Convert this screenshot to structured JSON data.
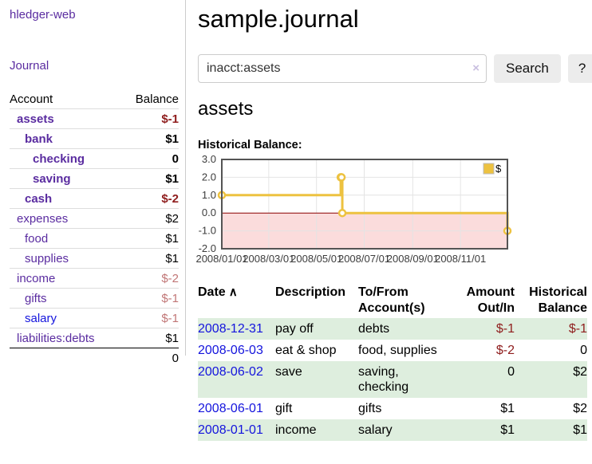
{
  "colors": {
    "purple_link": "#5a2ca0",
    "blue_link": "#1414dd",
    "negative_strong": "#8f1d1d",
    "negative_soft": "#c17676",
    "row_green": "#deeede",
    "series_gold": "#edc240",
    "below_zero_pink": "#fbdcdc",
    "zero_line_red": "#8b0000"
  },
  "sidebar": {
    "app_title": "hledger-web",
    "journal_label": "Journal",
    "accounts_table": {
      "headers": {
        "account": "Account",
        "balance": "Balance"
      },
      "rows": [
        {
          "name": "assets",
          "balance": "$-1"
        },
        {
          "name": "bank",
          "balance": "$1"
        },
        {
          "name": "checking",
          "balance": "0"
        },
        {
          "name": "saving",
          "balance": "$1"
        },
        {
          "name": "cash",
          "balance": "$-2"
        },
        {
          "name": "expenses",
          "balance": "$2"
        },
        {
          "name": "food",
          "balance": "$1"
        },
        {
          "name": "supplies",
          "balance": "$1"
        },
        {
          "name": "income",
          "balance": "$-2"
        },
        {
          "name": "gifts",
          "balance": "$-1"
        },
        {
          "name": "salary",
          "balance": "$-1"
        },
        {
          "name": "liabilities:debts",
          "balance": "$1"
        }
      ],
      "total": "0"
    }
  },
  "main": {
    "title": "sample.journal",
    "search": {
      "value": "inacct:assets",
      "clear_icon": "×",
      "button_label": "Search",
      "help_label": "?"
    },
    "account_heading": "assets",
    "chart_label": "Historical Balance:"
  },
  "chart_data": {
    "type": "line",
    "title": "Historical Balance:",
    "step": true,
    "series": [
      {
        "name": "$",
        "color": "#edc240",
        "points": [
          {
            "date": "2008-01-01",
            "value": 1
          },
          {
            "date": "2008-06-01",
            "value": 2
          },
          {
            "date": "2008-06-02",
            "value": 2
          },
          {
            "date": "2008-06-03",
            "value": 0
          },
          {
            "date": "2008-12-31",
            "value": -1
          }
        ]
      }
    ],
    "x_domain": [
      "2008-01-01",
      "2008-12-31"
    ],
    "xticks": [
      {
        "date": "2008-01-01",
        "label": "2008/01/01"
      },
      {
        "date": "2008-03-01",
        "label": "2008/03/01"
      },
      {
        "date": "2008-05-01",
        "label": "2008/05/01"
      },
      {
        "date": "2008-07-01",
        "label": "2008/07/01"
      },
      {
        "date": "2008-09-01",
        "label": "2008/09/01"
      },
      {
        "date": "2008-11-01",
        "label": "2008/11/01"
      }
    ],
    "yticks": [
      3,
      2,
      1,
      0,
      -1,
      -2
    ],
    "ytick_labels": [
      "3.0",
      "2.0",
      "1.0",
      "0.0",
      "-1.0",
      "-2.0"
    ],
    "ylim": [
      -2,
      3
    ],
    "grid": true,
    "legend": {
      "label": "$",
      "position": "top-right"
    },
    "colors": {
      "zero_line": "#8b0000",
      "below_zero_fill": "#fbdcdc",
      "grid": "#e4e4e4",
      "border": "#545454",
      "tick_text": "#3c3c3c"
    }
  },
  "register": {
    "headers": {
      "date": "Date",
      "sort_indicator": "∧",
      "description": "Description",
      "account_line1": "To/From",
      "account_line2": "Account(s)",
      "amount_line1": "Amount",
      "amount_line2": "Out/In",
      "balance_line1": "Historical",
      "balance_line2": "Balance"
    },
    "rows": [
      {
        "date": "2008-12-31",
        "description": "pay off",
        "accounts": "debts",
        "amount": "$-1",
        "balance": "$-1"
      },
      {
        "date": "2008-06-03",
        "description": "eat & shop",
        "accounts": "food, supplies",
        "amount": "$-2",
        "balance": "0"
      },
      {
        "date": "2008-06-02",
        "description": "save",
        "accounts": "saving, checking",
        "accounts_wrap": [
          "saving,",
          "checking"
        ],
        "amount": "0",
        "balance": "$2"
      },
      {
        "date": "2008-06-01",
        "description": "gift",
        "accounts": "gifts",
        "amount": "$1",
        "balance": "$2"
      },
      {
        "date": "2008-01-01",
        "description": "income",
        "accounts": "salary",
        "amount": "$1",
        "balance": "$1"
      }
    ]
  }
}
